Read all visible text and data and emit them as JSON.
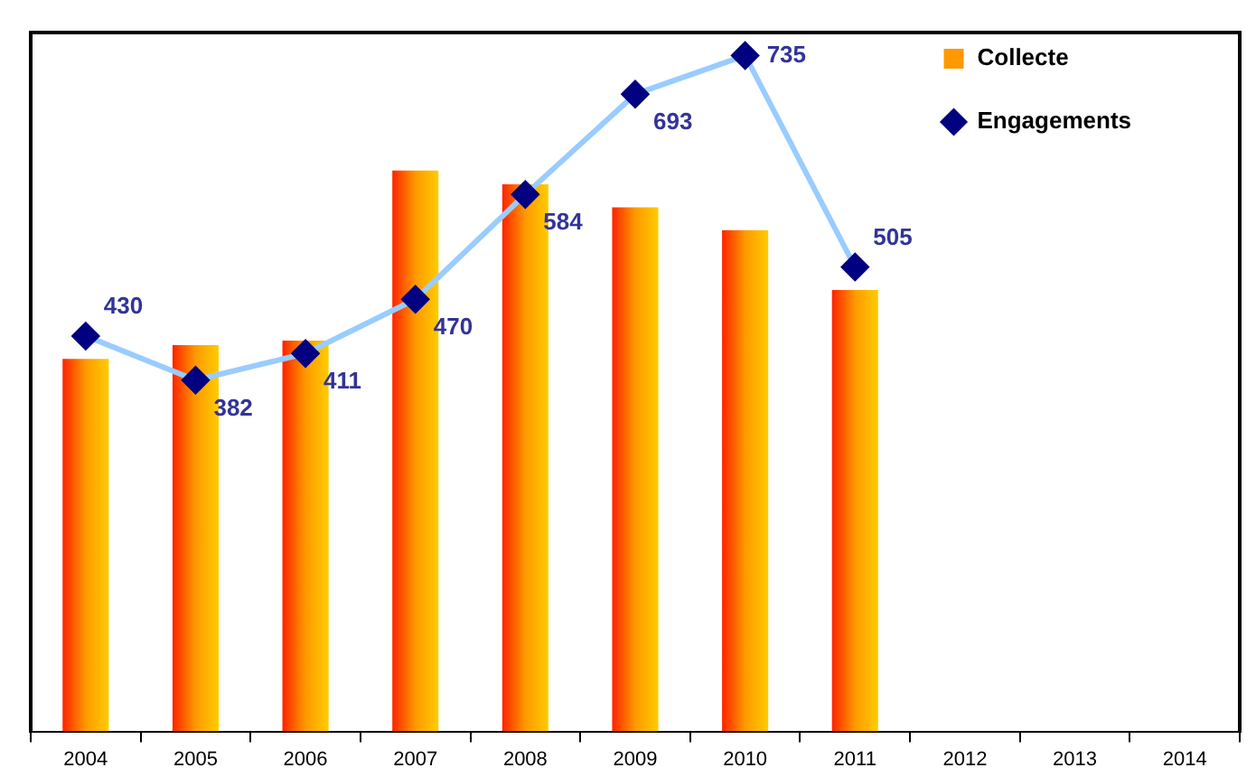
{
  "chart_data": {
    "type": "bar",
    "categories": [
      "2004",
      "2005",
      "2006",
      "2007",
      "2008",
      "2009",
      "2010",
      "2011",
      "2012",
      "2013",
      "2014"
    ],
    "series": [
      {
        "name": "Collecte",
        "color": "#ff9900",
        "values": [
          405,
          420,
          425,
          610,
          595,
          570,
          545,
          480,
          null,
          null,
          null
        ]
      },
      {
        "name": "Engagements",
        "type": "line",
        "color": "#99ccff",
        "marker": "diamond",
        "values": [
          430,
          382,
          411,
          470,
          584,
          693,
          735,
          505,
          null,
          null,
          null
        ],
        "value_labels": [
          "430",
          "382",
          "411",
          "470",
          "584",
          "693",
          "735",
          "505",
          null,
          null,
          null
        ]
      }
    ],
    "ylim": [
      0,
      760
    ],
    "tick_labels": "x",
    "grid": false,
    "legend": "top right"
  }
}
